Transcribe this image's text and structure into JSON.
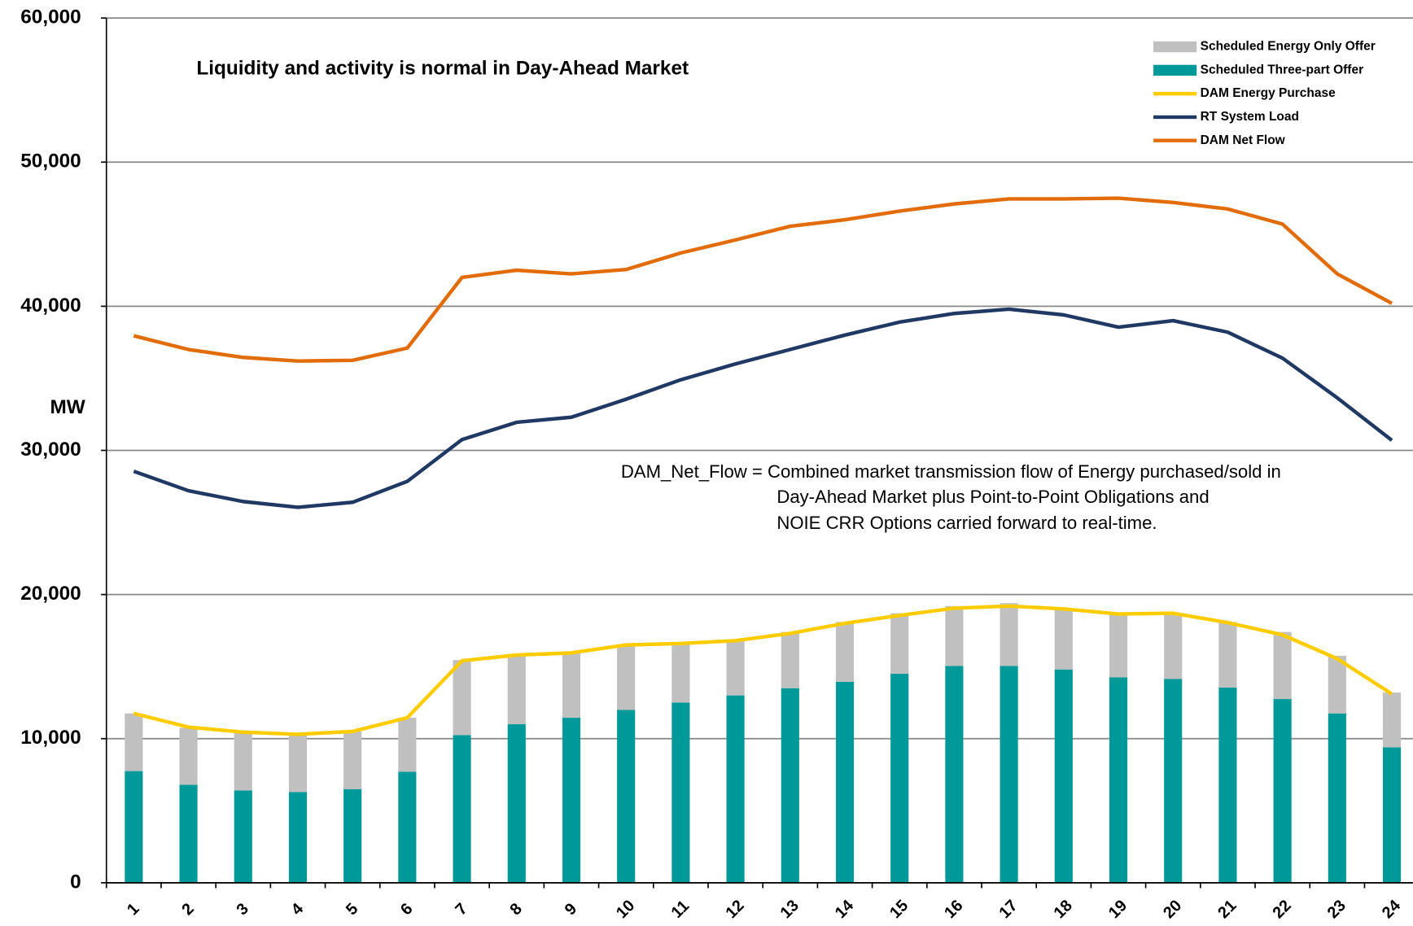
{
  "chart_data": {
    "type": "combo",
    "title": "Liquidity and activity is normal in Day-Ahead Market",
    "y_label": "MW",
    "note": [
      "DAM_Net_Flow = Combined market transmission flow of Energy purchased/sold in",
      "Day-Ahead Market plus Point-to-Point Obligations and",
      "NOIE CRR Options carried forward to real-time."
    ],
    "categories": [
      "1",
      "2",
      "3",
      "4",
      "5",
      "6",
      "7",
      "8",
      "9",
      "10",
      "11",
      "12",
      "13",
      "14",
      "15",
      "16",
      "17",
      "18",
      "19",
      "20",
      "21",
      "22",
      "23",
      "24"
    ],
    "ylim": [
      0,
      60000
    ],
    "yticks": [
      0,
      {
        "value": 10000,
        "label": "10,000"
      },
      {
        "value": 20000,
        "label": "20,000"
      },
      {
        "value": 30000,
        "label": "30,000"
      },
      {
        "value": 40000,
        "label": "40,000"
      },
      {
        "value": 50000,
        "label": "50,000"
      },
      {
        "value": 60000,
        "label": "60,000"
      }
    ],
    "grid": true,
    "legend": "top-right",
    "series": [
      {
        "name": "Scheduled Energy Only Offer",
        "type": "bar",
        "color": "#c0c0c0",
        "values": [
          4000,
          3950,
          4000,
          3950,
          4000,
          3750,
          5200,
          4800,
          4550,
          4500,
          4100,
          3800,
          3900,
          4150,
          4200,
          4150,
          4350,
          4250,
          4450,
          4550,
          4550,
          4650,
          4000,
          3800
        ]
      },
      {
        "name": "Scheduled Three-part Offer",
        "type": "bar",
        "color": "#009999",
        "values": [
          7750,
          6800,
          6400,
          6300,
          6500,
          7700,
          10250,
          11000,
          11450,
          12000,
          12500,
          13000,
          13500,
          13950,
          14500,
          15050,
          15050,
          14800,
          14250,
          14150,
          13550,
          12750,
          11750,
          9400
        ]
      },
      {
        "name": "DAM Energy Purchase",
        "type": "line",
        "color": "#ffcc00",
        "values": [
          11750,
          10800,
          10450,
          10300,
          10500,
          11450,
          15400,
          15800,
          15950,
          16500,
          16600,
          16800,
          17300,
          18000,
          18550,
          19050,
          19200,
          19000,
          18650,
          18700,
          18050,
          17200,
          15550,
          13100
        ]
      },
      {
        "name": "RT System Load",
        "type": "line",
        "color": "#1f3864",
        "values": [
          28550,
          27200,
          26450,
          26050,
          26400,
          27850,
          30750,
          31950,
          32300,
          33550,
          34900,
          36000,
          37000,
          38000,
          38900,
          39500,
          39800,
          39400,
          38550,
          39000,
          38200,
          36400,
          33650,
          30700
        ]
      },
      {
        "name": "DAM Net Flow",
        "type": "line",
        "color": "#e36c0a",
        "values": [
          37950,
          37000,
          36450,
          36200,
          36250,
          37100,
          42000,
          42500,
          42250,
          42550,
          43700,
          44600,
          45550,
          46000,
          46600,
          47100,
          47450,
          47450,
          47500,
          47200,
          46750,
          45700,
          42250,
          40200
        ]
      }
    ]
  }
}
